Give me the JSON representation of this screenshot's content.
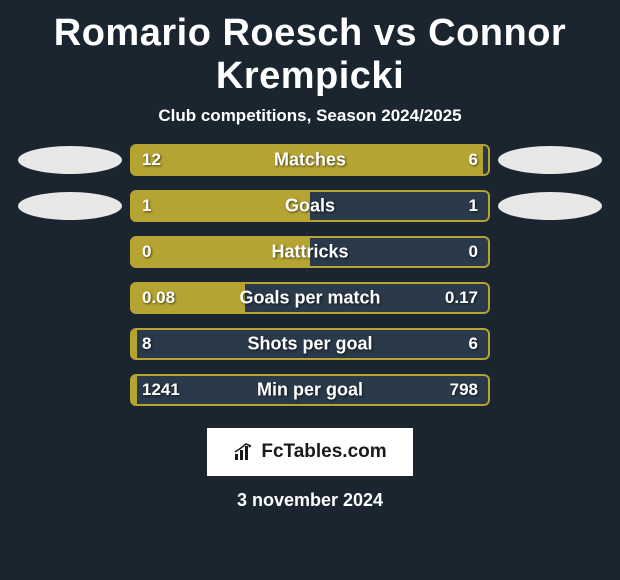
{
  "title": "Romario Roesch vs Connor Krempicki",
  "subtitle": "Club competitions, Season 2024/2025",
  "colors": {
    "background": "#1a2530",
    "left_fill": "#b5a432",
    "right_fill": "#2a3a4a",
    "border": "#b5a432",
    "text": "#ffffff",
    "avatar": "#e8e8e6",
    "logo_bg": "#ffffff",
    "logo_text": "#1a1a1a"
  },
  "stats": [
    {
      "label": "Matches",
      "left_val": "12",
      "right_val": "6",
      "left_pct": 98,
      "right_pct": 2,
      "show_avatar": true
    },
    {
      "label": "Goals",
      "left_val": "1",
      "right_val": "1",
      "left_pct": 50,
      "right_pct": 50,
      "show_avatar": true
    },
    {
      "label": "Hattricks",
      "left_val": "0",
      "right_val": "0",
      "left_pct": 50,
      "right_pct": 50,
      "show_avatar": false
    },
    {
      "label": "Goals per match",
      "left_val": "0.08",
      "right_val": "0.17",
      "left_pct": 32,
      "right_pct": 68,
      "show_avatar": false
    },
    {
      "label": "Shots per goal",
      "left_val": "8",
      "right_val": "6",
      "left_pct": 2,
      "right_pct": 98,
      "show_avatar": false
    },
    {
      "label": "Min per goal",
      "left_val": "1241",
      "right_val": "798",
      "left_pct": 2,
      "right_pct": 98,
      "show_avatar": false
    }
  ],
  "logo": {
    "text": "FcTables.com",
    "icon": "chart-icon"
  },
  "date": "3 november 2024"
}
